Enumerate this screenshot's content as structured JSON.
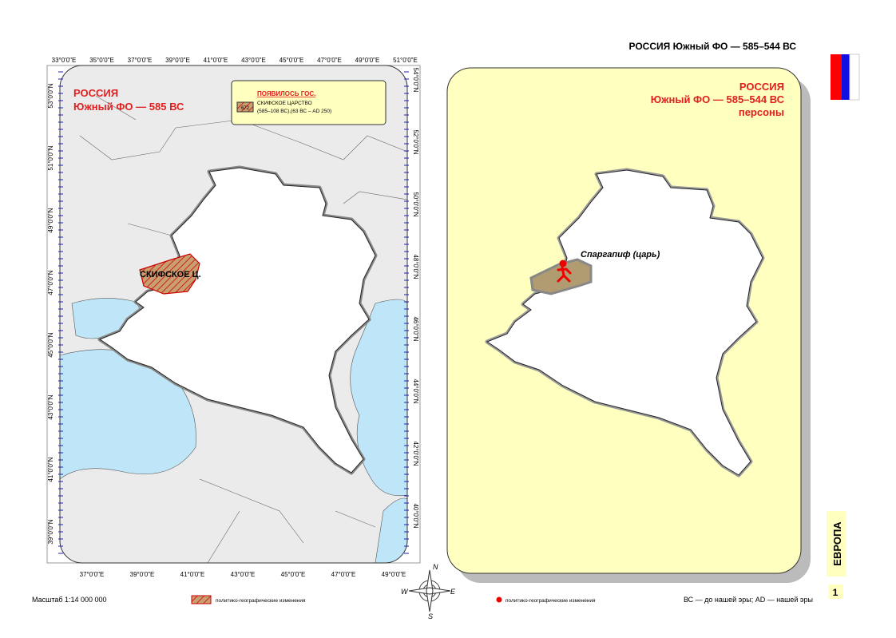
{
  "header": {
    "title": "РОССИЯ  Южный ФО — 585–544 ВС"
  },
  "left_map": {
    "title": "РОССИЯ",
    "subtitle": "Южный ФО — 585 ВС",
    "legend": {
      "heading": "ПОЯВИЛОСЬ ГОС.",
      "badge": "672",
      "name": "СКИФСКОЕ ЦАРСТВО",
      "dates": "(585–108 ВС),(63 ВС – AD 250)"
    },
    "label": "СКИФСКОЕ Ц.",
    "top_ticks": [
      "33°0'0\"E",
      "35°0'0\"E",
      "37°0'0\"E",
      "39°0'0\"E",
      "41°0'0\"E",
      "43°0'0\"E",
      "45°0'0\"E",
      "47°0'0\"E",
      "49°0'0\"E",
      "51°0'0\"E"
    ],
    "bottom_ticks": [
      "37°0'0\"E",
      "39°0'0\"E",
      "41°0'0\"E",
      "43°0'0\"E",
      "45°0'0\"E",
      "47°0'0\"E",
      "49°0'0\"E"
    ],
    "left_ticks": [
      "53°0'0\"N",
      "51°0'0\"N",
      "49°0'0\"N",
      "47°0'0\"N",
      "45°0'0\"N",
      "43°0'0\"N",
      "41°0'0\"N",
      "39°0'0\"N"
    ],
    "right_ticks": [
      "54°0'0\"N",
      "52°0'0\"N",
      "50°0'0\"N",
      "48°0'0\"N",
      "46°0'0\"N",
      "44°0'0\"N",
      "42°0'0\"N",
      "40°0'0\"N"
    ]
  },
  "right_map": {
    "title": "РОССИЯ",
    "subtitle": "Южный ФО — 585–544 ВС",
    "note": "персоны",
    "person": "Спаргапиф (царь)"
  },
  "compass": [
    "N",
    "W",
    "E",
    "S"
  ],
  "footer": {
    "scale": "Масштаб 1:14 000 000",
    "legend_left": "политико-географические изменения",
    "legend_right": "политико-географические изменения",
    "era": "ВС — до нашей эры; AD — нашей эры"
  },
  "side": {
    "region": "ЕВРОПА",
    "page": "1"
  }
}
